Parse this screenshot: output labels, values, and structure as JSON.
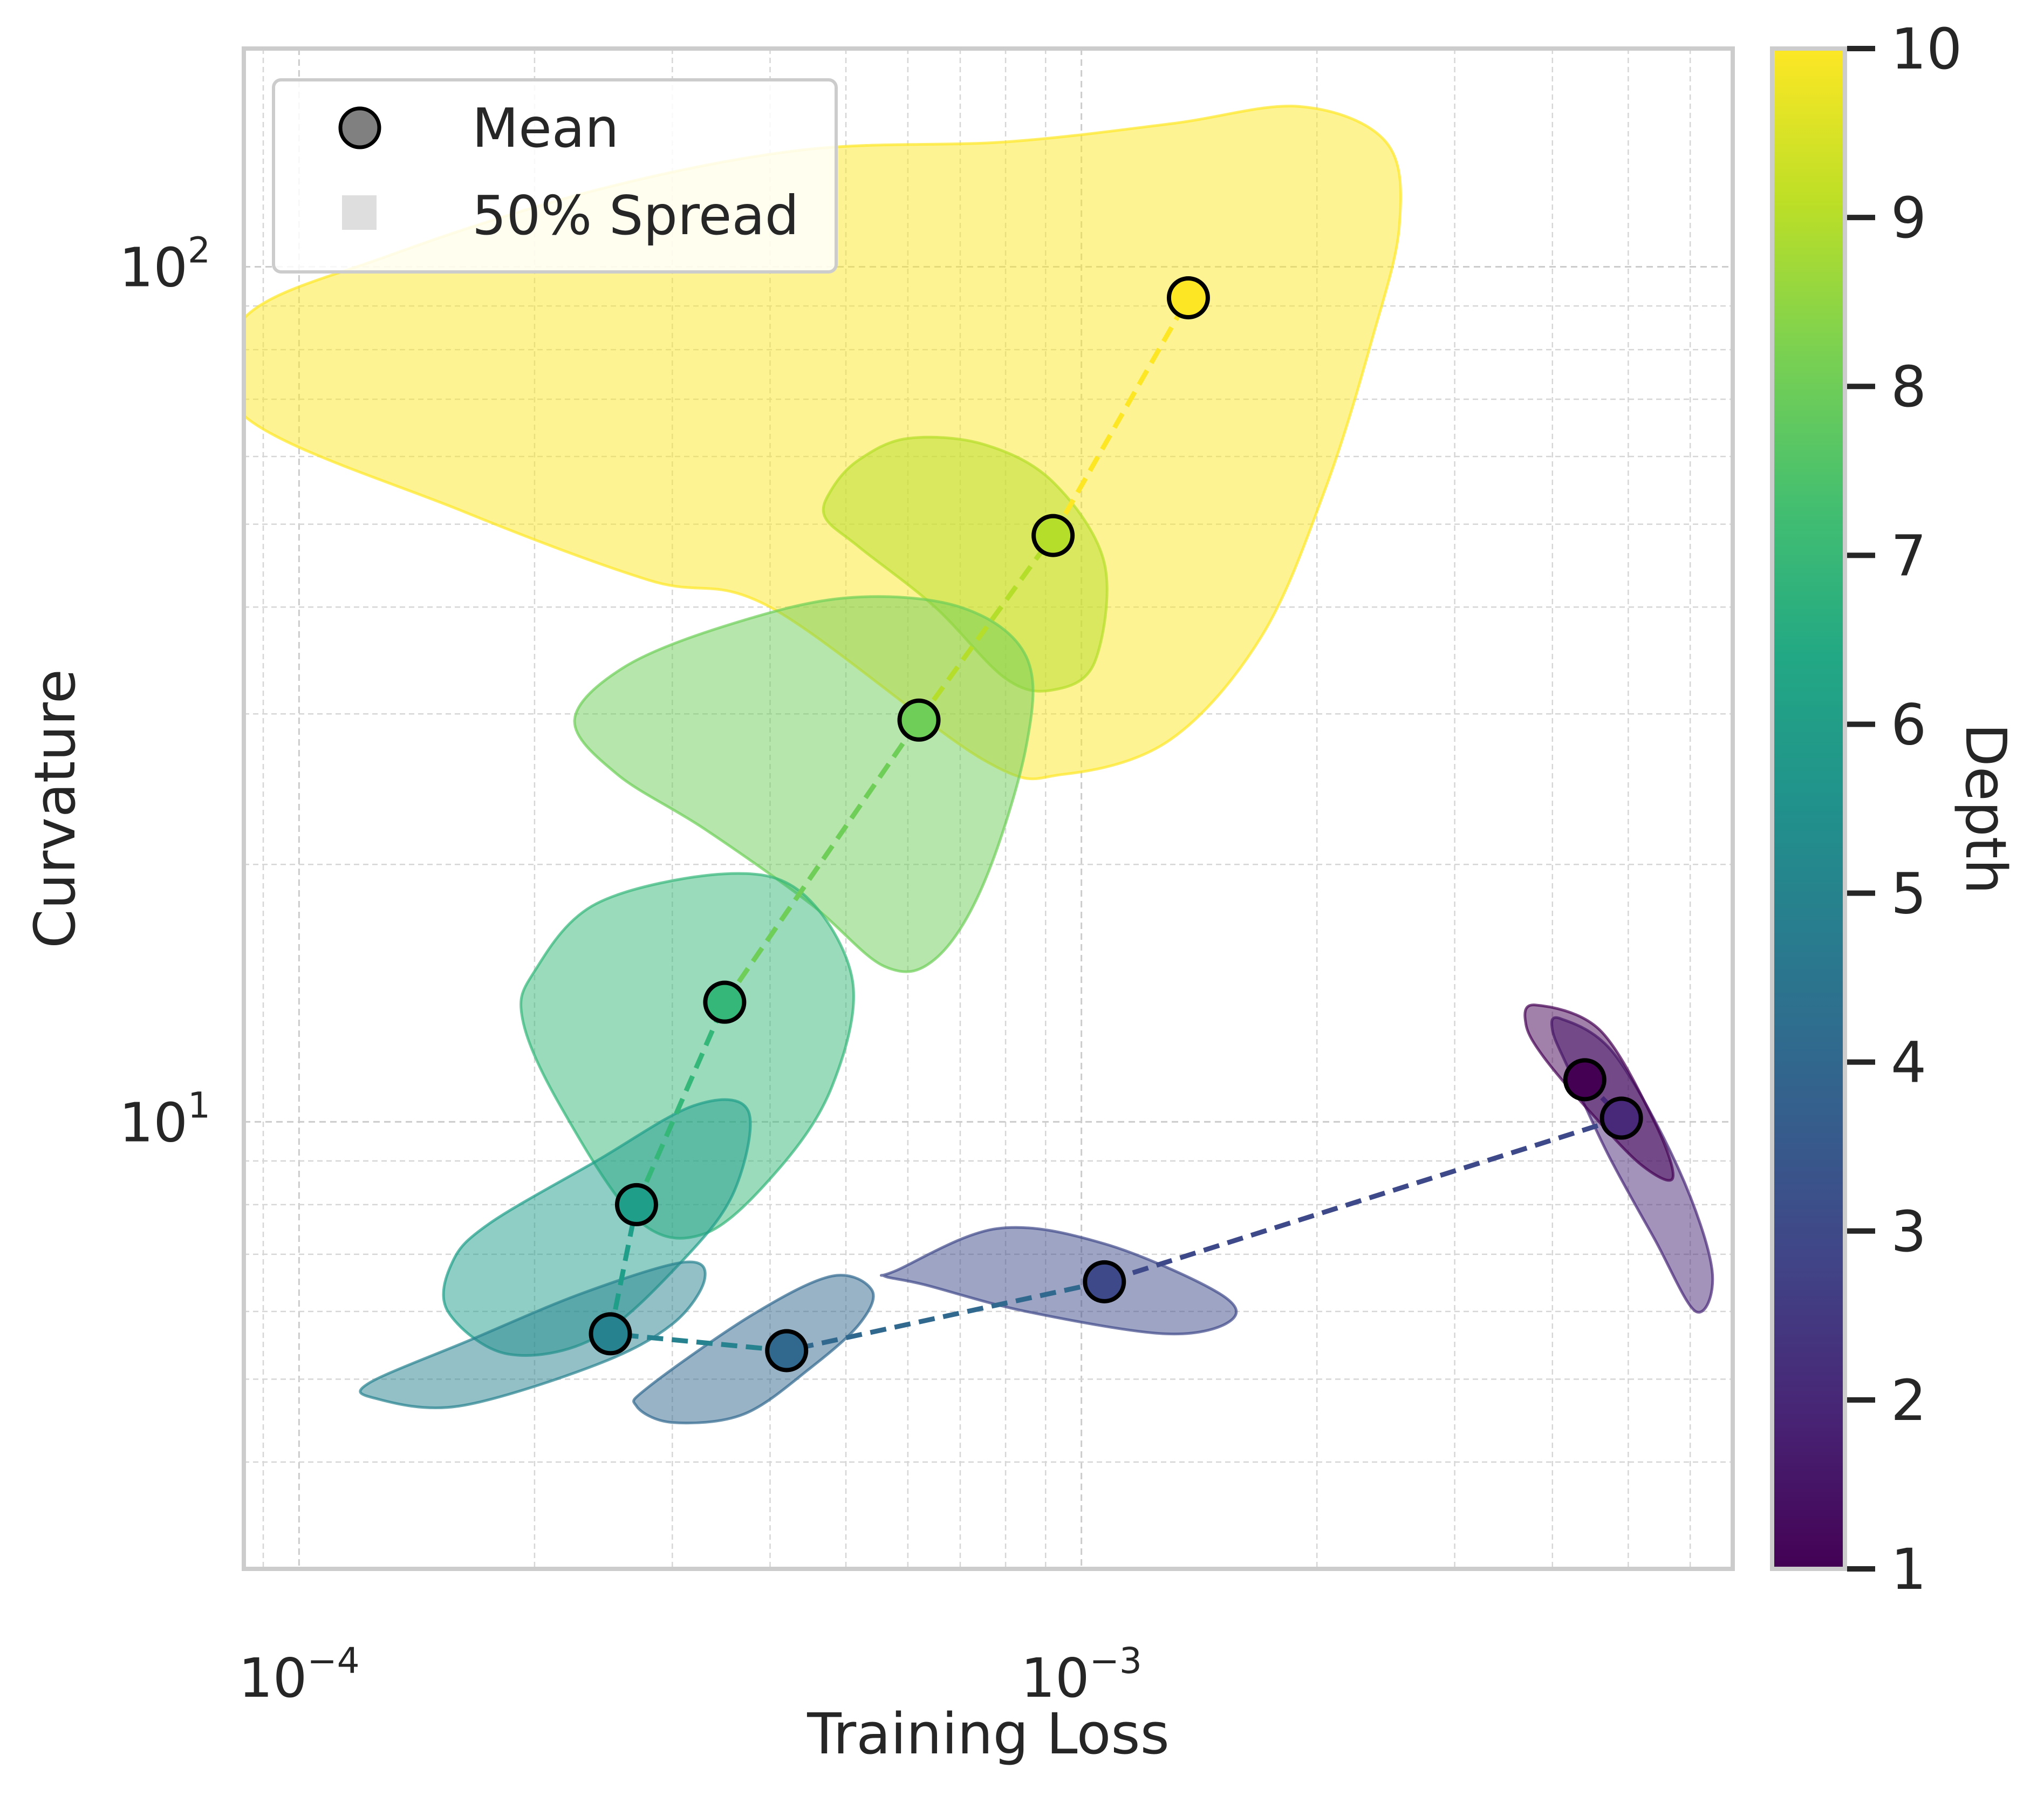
{
  "chart_data": {
    "type": "scatter",
    "title": "",
    "xlabel": "Training Loss",
    "ylabel": "Curvature",
    "xscale": "log",
    "yscale": "log",
    "xlim": [
      8.5e-05,
      0.0068
    ],
    "ylim": [
      3.0,
      180
    ],
    "x_ticks": [
      {
        "value": 0.0001,
        "base": "10",
        "exp": "−4"
      },
      {
        "value": 0.001,
        "base": "10",
        "exp": "−3"
      }
    ],
    "y_ticks": [
      {
        "value": 10,
        "base": "10",
        "exp": "1"
      },
      {
        "value": 100,
        "base": "10",
        "exp": "2"
      }
    ],
    "grid": "on (major and minor, dashed)",
    "legend": {
      "placement": "top-left",
      "entries": [
        {
          "label": "Mean",
          "marker": "circle",
          "color": "#808080"
        },
        {
          "label": "50% Spread",
          "marker": "square",
          "color": "#dedede"
        }
      ]
    },
    "colorbar": {
      "label": "Depth",
      "colormap": "viridis",
      "range": [
        1,
        10
      ],
      "ticks": [
        "1",
        "2",
        "3",
        "4",
        "5",
        "6",
        "7",
        "8",
        "9",
        "10"
      ]
    },
    "series": [
      {
        "depth": 1,
        "color": "#440154",
        "mean": {
          "x": 0.0044,
          "y": 11.2
        },
        "spread": [
          [
            0.0038,
            13.7
          ],
          [
            0.0046,
            12.8
          ],
          [
            0.0054,
            10.0
          ],
          [
            0.0057,
            8.6
          ],
          [
            0.0052,
            8.9
          ],
          [
            0.0045,
            10.2
          ],
          [
            0.0039,
            11.9
          ],
          [
            0.0037,
            13.0
          ]
        ]
      },
      {
        "depth": 2,
        "color": "#482878",
        "mean": {
          "x": 0.0049,
          "y": 10.1
        },
        "spread": [
          [
            0.0041,
            13.2
          ],
          [
            0.0048,
            12.0
          ],
          [
            0.0058,
            8.8
          ],
          [
            0.0064,
            6.7
          ],
          [
            0.0061,
            6.0
          ],
          [
            0.0054,
            7.3
          ],
          [
            0.0047,
            9.2
          ],
          [
            0.0042,
            11.5
          ],
          [
            0.004,
            12.8
          ]
        ]
      },
      {
        "depth": 3,
        "color": "#3e4989",
        "mean": {
          "x": 0.00107,
          "y": 6.5
        },
        "spread": [
          [
            0.00058,
            6.7
          ],
          [
            0.00078,
            7.5
          ],
          [
            0.00107,
            7.2
          ],
          [
            0.0015,
            6.3
          ],
          [
            0.00155,
            5.85
          ],
          [
            0.00128,
            5.65
          ],
          [
            0.00085,
            6.0
          ],
          [
            0.00063,
            6.45
          ],
          [
            0.00056,
            6.6
          ]
        ]
      },
      {
        "depth": 4,
        "color": "#31688e",
        "mean": {
          "x": 0.00042,
          "y": 5.4
        },
        "spread": [
          [
            0.00028,
            4.9
          ],
          [
            0.00038,
            5.95
          ],
          [
            0.00048,
            6.6
          ],
          [
            0.00054,
            6.35
          ],
          [
            0.00052,
            5.8
          ],
          [
            0.00045,
            5.15
          ],
          [
            0.00037,
            4.55
          ],
          [
            0.0003,
            4.45
          ],
          [
            0.00027,
            4.65
          ]
        ]
      },
      {
        "depth": 5,
        "color": "#26828e",
        "mean": {
          "x": 0.00025,
          "y": 5.65
        },
        "spread": [
          [
            0.000123,
            4.95
          ],
          [
            0.000165,
            5.55
          ],
          [
            0.00023,
            6.3
          ],
          [
            0.00031,
            6.85
          ],
          [
            0.00033,
            6.55
          ],
          [
            0.0003,
            5.8
          ],
          [
            0.00024,
            5.2
          ],
          [
            0.00016,
            4.65
          ],
          [
            0.000125,
            4.75
          ]
        ]
      },
      {
        "depth": 6,
        "color": "#1f9e89",
        "mean": {
          "x": 0.00027,
          "y": 8.0
        },
        "spread": [
          [
            0.000157,
            6.85
          ],
          [
            0.000175,
            7.6
          ],
          [
            0.00024,
            9.0
          ],
          [
            0.00032,
            10.45
          ],
          [
            0.000375,
            10.3
          ],
          [
            0.00036,
            8.3
          ],
          [
            0.00031,
            6.9
          ],
          [
            0.00024,
            5.6
          ],
          [
            0.000185,
            5.35
          ],
          [
            0.000155,
            6.0
          ]
        ]
      },
      {
        "depth": 7,
        "color": "#35b779",
        "mean": {
          "x": 0.00035,
          "y": 13.8
        },
        "spread": [
          [
            0.000193,
            13.2
          ],
          [
            0.0002,
            15.0
          ],
          [
            0.00024,
            18.0
          ],
          [
            0.00035,
            19.5
          ],
          [
            0.00044,
            18.5
          ],
          [
            0.00051,
            14.6
          ],
          [
            0.00048,
            11.0
          ],
          [
            0.00041,
            8.8
          ],
          [
            0.00033,
            7.4
          ],
          [
            0.00027,
            7.7
          ],
          [
            0.000215,
            10.5
          ]
        ]
      },
      {
        "depth": 8,
        "color": "#6ece58",
        "mean": {
          "x": 0.00062,
          "y": 29.5
        },
        "spread": [
          [
            0.000225,
            29.5
          ],
          [
            0.00026,
            34.0
          ],
          [
            0.00035,
            38.0
          ],
          [
            0.0005,
            41.0
          ],
          [
            0.0007,
            40.0
          ],
          [
            0.00085,
            35.0
          ],
          [
            0.00085,
            27.5
          ],
          [
            0.00075,
            19.0
          ],
          [
            0.00065,
            15.5
          ],
          [
            0.00056,
            15.2
          ],
          [
            0.00045,
            18.0
          ],
          [
            0.00033,
            22.0
          ],
          [
            0.000255,
            25.5
          ]
        ]
      },
      {
        "depth": 9,
        "color": "#b5de2b",
        "mean": {
          "x": 0.00092,
          "y": 48.5
        },
        "spread": [
          [
            0.00048,
            55.0
          ],
          [
            0.00052,
            59.5
          ],
          [
            0.0006,
            63.0
          ],
          [
            0.00075,
            62.0
          ],
          [
            0.00092,
            56.0
          ],
          [
            0.00107,
            45.0
          ],
          [
            0.00104,
            34.5
          ],
          [
            0.00092,
            32.0
          ],
          [
            0.0008,
            33.0
          ],
          [
            0.00065,
            40.0
          ],
          [
            0.00052,
            47.0
          ],
          [
            0.00047,
            51.0
          ]
        ]
      },
      {
        "depth": 10,
        "color": "#fde725",
        "mean": {
          "x": 0.00137,
          "y": 92.0
        },
        "spread": [
          [
            8.5e-05,
            87.0
          ],
          [
            0.00013,
            103.0
          ],
          [
            0.00024,
            123.0
          ],
          [
            0.00044,
            137.0
          ],
          [
            0.0008,
            140.0
          ],
          [
            0.0013,
            147.0
          ],
          [
            0.0019,
            154.0
          ],
          [
            0.00245,
            140.0
          ],
          [
            0.00255,
            112.0
          ],
          [
            0.00235,
            82.0
          ],
          [
            0.00205,
            55.0
          ],
          [
            0.0017,
            37.0
          ],
          [
            0.0013,
            28.0
          ],
          [
            0.00095,
            25.5
          ],
          [
            0.00075,
            26.5
          ],
          [
            0.0004,
            40.0
          ],
          [
            0.00028,
            43.0
          ],
          [
            0.00016,
            52.0
          ],
          [
            8.5e-05,
            67.0
          ]
        ]
      }
    ],
    "mean_path": [
      {
        "depth": 1,
        "color": "#440154",
        "x": 0.0044,
        "y": 11.2
      },
      {
        "depth": 2,
        "color": "#482878",
        "x": 0.0049,
        "y": 10.1
      },
      {
        "depth": 3,
        "color": "#3e4989",
        "x": 0.00107,
        "y": 6.5
      },
      {
        "depth": 4,
        "color": "#31688e",
        "x": 0.00042,
        "y": 5.4
      },
      {
        "depth": 5,
        "color": "#26828e",
        "x": 0.00025,
        "y": 5.65
      },
      {
        "depth": 6,
        "color": "#1f9e89",
        "x": 0.00027,
        "y": 8.0
      },
      {
        "depth": 7,
        "color": "#35b779",
        "x": 0.00035,
        "y": 13.8
      },
      {
        "depth": 8,
        "color": "#6ece58",
        "x": 0.00062,
        "y": 29.5
      },
      {
        "depth": 9,
        "color": "#b5de2b",
        "x": 0.00092,
        "y": 48.5
      },
      {
        "depth": 10,
        "color": "#fde725",
        "x": 0.00137,
        "y": 92.0
      }
    ]
  }
}
